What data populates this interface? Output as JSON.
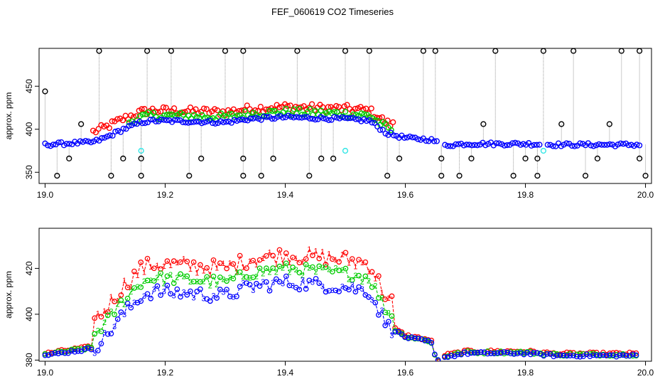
{
  "title": "FEF_060619  CO2 Timeseries",
  "colors": {
    "black": "#000000",
    "red": "#ff0000",
    "green": "#00cc00",
    "blue": "#0000ff",
    "cyan": "#33e6e6",
    "gray": "#999999"
  },
  "chart_data": [
    {
      "type": "scatter",
      "title": "FEF_060619  CO2 Timeseries",
      "xlabel": "",
      "ylabel": "approx. ppm",
      "xlim": [
        18.99,
        20.01
      ],
      "ylim": [
        337,
        494
      ],
      "xticks": [
        19.0,
        19.2,
        19.4,
        19.6,
        19.8,
        20.0
      ],
      "xtick_labels": [
        "19.0",
        "19.2",
        "19.4",
        "19.6",
        "19.8",
        "20.0"
      ],
      "yticks": [
        350,
        400,
        450
      ],
      "ytick_labels": [
        "350",
        "400",
        "450"
      ],
      "grid": false,
      "legend": "none",
      "profile": [
        [
          19.0,
          382
        ],
        [
          19.05,
          384
        ],
        [
          19.08,
          385
        ],
        [
          19.1,
          390
        ],
        [
          19.13,
          400
        ],
        [
          19.16,
          408
        ],
        [
          19.18,
          410
        ],
        [
          19.25,
          409
        ],
        [
          19.3,
          408
        ],
        [
          19.34,
          412
        ],
        [
          19.4,
          414
        ],
        [
          19.45,
          413
        ],
        [
          19.5,
          412
        ],
        [
          19.54,
          410
        ],
        [
          19.57,
          395
        ],
        [
          19.6,
          390
        ],
        [
          19.64,
          388
        ],
        [
          19.65,
          386
        ],
        [
          19.66,
          381
        ],
        [
          19.7,
          383
        ],
        [
          19.8,
          383
        ],
        [
          19.85,
          382
        ],
        [
          19.95,
          382
        ],
        [
          19.99,
          382
        ]
      ],
      "series": [
        {
          "name": "",
          "color": "red",
          "values_offset": 12,
          "x_range": [
            19.08,
            19.58
          ]
        },
        {
          "name": "",
          "color": "green",
          "values_offset": 6,
          "x_range": [
            19.14,
            19.58
          ]
        },
        {
          "name": "",
          "color": "blue",
          "values_offset": 0,
          "x_range": [
            19.0,
            19.99
          ]
        }
      ],
      "outliers_black": [
        [
          19.0,
          444
        ],
        [
          19.02,
          346
        ],
        [
          19.04,
          366
        ],
        [
          19.06,
          406
        ],
        [
          19.09,
          491
        ],
        [
          19.11,
          346
        ],
        [
          19.13,
          366
        ],
        [
          19.16,
          346
        ],
        [
          19.16,
          366
        ],
        [
          19.17,
          491
        ],
        [
          19.21,
          491
        ],
        [
          19.24,
          346
        ],
        [
          19.26,
          366
        ],
        [
          19.3,
          491
        ],
        [
          19.33,
          491
        ],
        [
          19.33,
          366
        ],
        [
          19.33,
          346
        ],
        [
          19.36,
          346
        ],
        [
          19.38,
          366
        ],
        [
          19.42,
          491
        ],
        [
          19.44,
          346
        ],
        [
          19.46,
          366
        ],
        [
          19.48,
          366
        ],
        [
          19.5,
          491
        ],
        [
          19.54,
          491
        ],
        [
          19.57,
          346
        ],
        [
          19.59,
          366
        ],
        [
          19.63,
          491
        ],
        [
          19.65,
          491
        ],
        [
          19.66,
          366
        ],
        [
          19.66,
          346
        ],
        [
          19.69,
          346
        ],
        [
          19.71,
          366
        ],
        [
          19.73,
          406
        ],
        [
          19.75,
          491
        ],
        [
          19.78,
          346
        ],
        [
          19.8,
          366
        ],
        [
          19.82,
          366
        ],
        [
          19.82,
          346
        ],
        [
          19.83,
          491
        ],
        [
          19.86,
          406
        ],
        [
          19.88,
          491
        ],
        [
          19.9,
          346
        ],
        [
          19.92,
          366
        ],
        [
          19.94,
          406
        ],
        [
          19.96,
          491
        ],
        [
          19.99,
          491
        ],
        [
          19.99,
          366
        ],
        [
          20.0,
          346
        ]
      ],
      "outliers_cyan": [
        [
          19.16,
          375
        ],
        [
          19.5,
          375
        ],
        [
          19.83,
          375
        ]
      ]
    },
    {
      "type": "line",
      "title": "",
      "xlabel": "",
      "ylabel": "approx. ppm",
      "xlim": [
        18.99,
        20.01
      ],
      "ylim": [
        379.5,
        437.5
      ],
      "xticks": [
        19.0,
        19.2,
        19.4,
        19.6,
        19.8,
        20.0
      ],
      "xtick_labels": [
        "19.0",
        "19.2",
        "19.4",
        "19.6",
        "19.8",
        "20.0"
      ],
      "yticks": [
        380,
        400,
        420
      ],
      "ytick_labels": [
        "380",
        "400",
        "420"
      ],
      "grid": false,
      "legend": "none",
      "series": [
        {
          "name": "",
          "marker": "1",
          "color": "red"
        },
        {
          "name": "",
          "marker": "2",
          "color": "green"
        },
        {
          "name": "",
          "marker": "3",
          "color": "blue"
        }
      ],
      "gap": [
        19.655,
        19.665
      ]
    }
  ]
}
